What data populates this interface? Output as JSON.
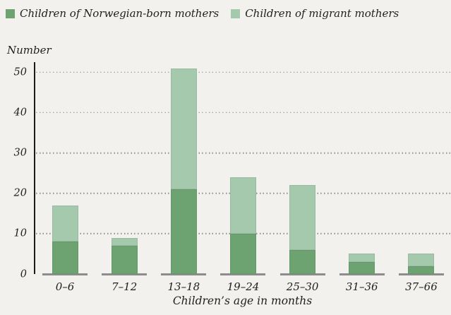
{
  "background_color": "#f2f1ee",
  "text_color": "#1f1f1d",
  "legend": {
    "items": [
      {
        "key": "norwegian",
        "label": "Children of Norwegian-born mothers",
        "color": "#6ca371"
      },
      {
        "key": "migrant",
        "label": "Children of migrant mothers",
        "color": "#a5c9ad"
      }
    ]
  },
  "chart_data": {
    "type": "bar",
    "stacked": true,
    "title": "",
    "ylabel": "Number",
    "xlabel": "Children’s age in months",
    "categories": [
      "0–6",
      "7–12",
      "13–18",
      "19–24",
      "25–30",
      "31–36",
      "37–66"
    ],
    "series": [
      {
        "name": "Children of Norwegian-born mothers",
        "color": "#6ca371",
        "values": [
          8,
          7,
          21,
          10,
          6,
          3,
          2
        ]
      },
      {
        "name": "Children of migrant mothers",
        "color": "#a5c9ad",
        "values": [
          9,
          2,
          30,
          14,
          16,
          2,
          3
        ]
      }
    ],
    "totals": [
      17,
      9,
      51,
      24,
      22,
      5,
      5
    ],
    "ylim": [
      0,
      52.5
    ],
    "yticks": [
      0,
      10,
      20,
      30,
      40,
      50
    ],
    "grid": "horizontal-dotted",
    "legend_position": "top-left",
    "axis_line_color": "#1b1b1b",
    "grid_dot_color": "#8d8d8d",
    "baseline_color": "#8c8c8c"
  }
}
